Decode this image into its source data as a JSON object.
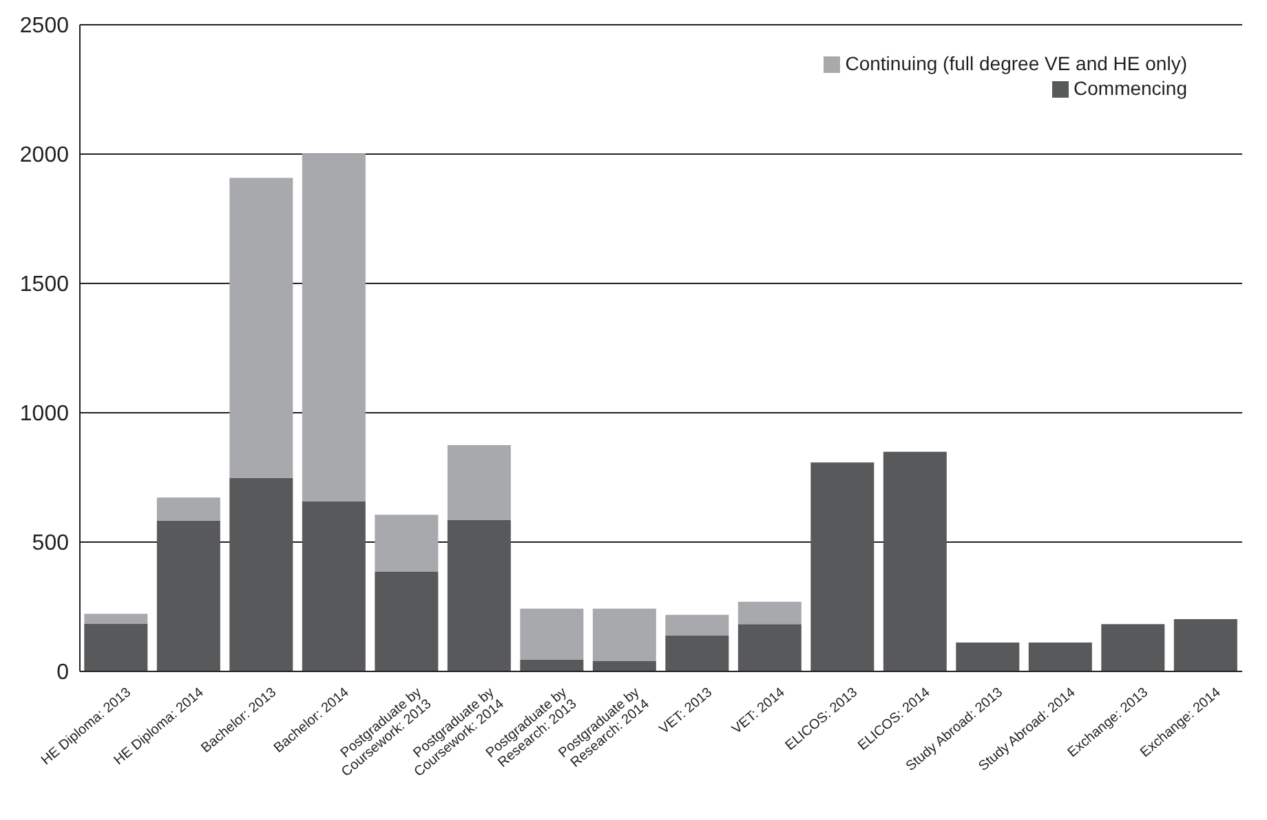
{
  "chart_data": {
    "type": "bar",
    "stacked": true,
    "categories": [
      "HE Diploma: 2013",
      "HE Diploma: 2014",
      "Bachelor: 2013",
      "Bachelor: 2014",
      "Postgraduate by Coursework: 2013",
      "Postgraduate by Coursework: 2014",
      "Postgraduate by Research: 2013",
      "Postgraduate by Research: 2014",
      "VET: 2013",
      "VET: 2014",
      "ELICOS: 2013",
      "ELICOS: 2014",
      "Study Abroad: 2013",
      "Study Abroad: 2014",
      "Exchange: 2013",
      "Exchange: 2014"
    ],
    "series": [
      {
        "name": "Commencing",
        "color": "#58595b",
        "values": [
          185,
          583,
          748,
          657,
          386,
          586,
          46,
          40,
          138,
          183,
          808,
          849,
          112,
          112,
          183,
          202
        ]
      },
      {
        "name": "Continuing (full degree VE and HE only)",
        "color": "#a7a9ac",
        "values": [
          38,
          89,
          1160,
          1345,
          220,
          289,
          197,
          203,
          81,
          86,
          0,
          0,
          0,
          0,
          0,
          0
        ]
      }
    ],
    "ylim": [
      0,
      2500
    ],
    "yticks": [
      0,
      500,
      1000,
      1500,
      2000,
      2500
    ],
    "grid": "y",
    "legend": "top right"
  }
}
